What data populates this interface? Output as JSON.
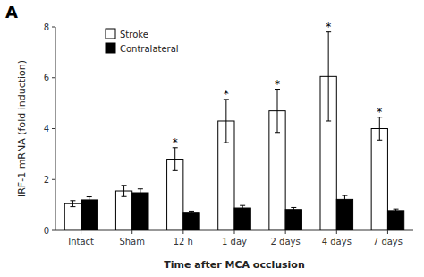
{
  "chart_data": {
    "type": "bar",
    "categories": [
      "Intact",
      "Sham",
      "12 h",
      "1 day",
      "2 days",
      "4 days",
      "7 days"
    ],
    "series": [
      {
        "name": "Stroke",
        "color": "#ffffff",
        "values": [
          1.05,
          1.55,
          2.8,
          4.3,
          4.7,
          6.05,
          4.0
        ],
        "errors": [
          0.12,
          0.22,
          0.45,
          0.85,
          0.85,
          1.75,
          0.45
        ],
        "annotations": [
          null,
          null,
          "*",
          "*",
          "*",
          "*",
          "*"
        ]
      },
      {
        "name": "Contralateral",
        "color": "#000000",
        "values": [
          1.2,
          1.48,
          0.68,
          0.88,
          0.82,
          1.22,
          0.78
        ],
        "errors": [
          0.12,
          0.15,
          0.08,
          0.1,
          0.08,
          0.15,
          0.06
        ]
      }
    ],
    "ylabel": "IRF-1 mRNA (fold induction)",
    "xlabel": "Time after MCA occlusion",
    "panel_label": "A",
    "ylim": [
      0,
      8
    ],
    "yticks": [
      0,
      2,
      4,
      6,
      8
    ],
    "grid": false,
    "legend": "upper left"
  }
}
